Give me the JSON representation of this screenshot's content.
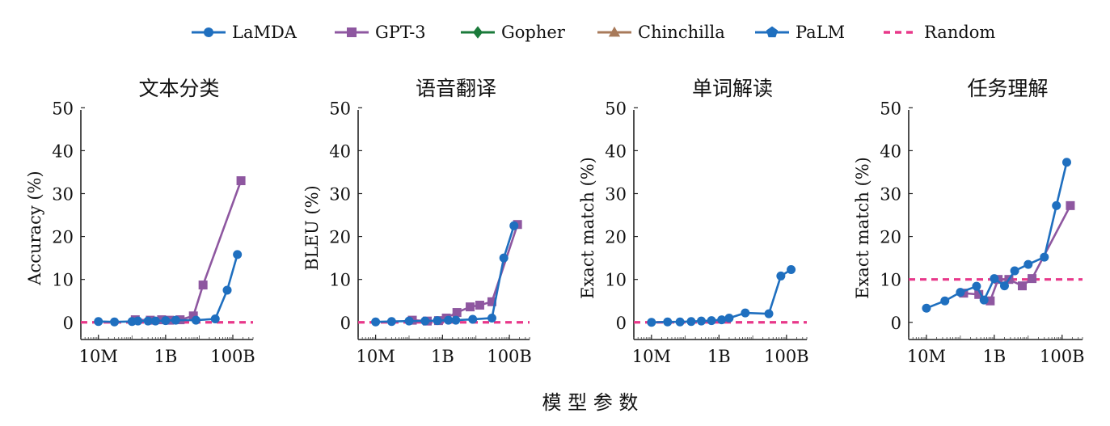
{
  "legend": [
    {
      "name": "LaMDA",
      "color": "#1f6fbf",
      "marker": "circle"
    },
    {
      "name": "GPT-3",
      "color": "#8e57a0",
      "marker": "square"
    },
    {
      "name": "Gopher",
      "color": "#1a7a3a",
      "marker": "diamond"
    },
    {
      "name": "Chinchilla",
      "color": "#a87a5a",
      "marker": "triangle"
    },
    {
      "name": "PaLM",
      "color": "#1f6fbf",
      "marker": "pentagon"
    },
    {
      "name": "Random",
      "color": "#e8388a",
      "marker": "dashed"
    }
  ],
  "footer": {
    "xlabel": "模 型 参 数"
  },
  "chart_data": [
    {
      "type": "line",
      "title": "文本分类",
      "ylabel": "Accuracy (%)",
      "xscale": "log",
      "xlim": [
        3000000,
        400000000000
      ],
      "ylim": [
        -4,
        51
      ],
      "yticks": [
        0,
        10,
        20,
        30,
        40,
        50
      ],
      "xticks": [
        {
          "value": 10000000,
          "label": "10M"
        },
        {
          "value": 1000000000,
          "label": "1B"
        },
        {
          "value": 100000000000,
          "label": "100B"
        }
      ],
      "random": 0,
      "series": [
        {
          "name": "LaMDA",
          "x": [
            10000000,
            30000000,
            100000000,
            150000000,
            300000000,
            500000000,
            1000000000,
            2000000000,
            8000000000,
            30000000000,
            68000000000,
            137000000000
          ],
          "y": [
            0.2,
            0.1,
            0.2,
            0.3,
            0.3,
            0.3,
            0.4,
            0.5,
            0.5,
            0.8,
            7.5,
            15.8
          ]
        },
        {
          "name": "GPT-3",
          "x": [
            125000000,
            350000000,
            760000000,
            1300000000,
            2700000000,
            6700000000,
            13000000000,
            175000000000
          ],
          "y": [
            0.6,
            0.5,
            0.6,
            0.5,
            0.6,
            1.5,
            8.7,
            33.0
          ]
        }
      ]
    },
    {
      "type": "line",
      "title": "语音翻译",
      "ylabel": "BLEU (%)",
      "xscale": "log",
      "xlim": [
        3000000,
        400000000000
      ],
      "ylim": [
        -4,
        51
      ],
      "yticks": [
        0,
        10,
        20,
        30,
        40,
        50
      ],
      "xticks": [
        {
          "value": 10000000,
          "label": "10M"
        },
        {
          "value": 1000000000,
          "label": "1B"
        },
        {
          "value": 100000000000,
          "label": "100B"
        }
      ],
      "random": 0,
      "series": [
        {
          "name": "LaMDA",
          "x": [
            10000000,
            30000000,
            100000000,
            300000000,
            700000000,
            1500000000,
            2500000000,
            8000000000,
            30000000000,
            68000000000,
            137000000000
          ],
          "y": [
            0.1,
            0.2,
            0.3,
            0.3,
            0.4,
            0.5,
            0.5,
            0.7,
            1.0,
            15.0,
            22.5
          ]
        },
        {
          "name": "GPT-3",
          "x": [
            125000000,
            350000000,
            760000000,
            1300000000,
            2700000000,
            6700000000,
            13000000000,
            30000000000,
            175000000000
          ],
          "y": [
            0.5,
            0.3,
            0.4,
            1.0,
            2.3,
            3.6,
            4.0,
            4.8,
            22.8
          ]
        }
      ]
    },
    {
      "type": "line",
      "title": "单词解读",
      "ylabel": "Exact match (%)",
      "xscale": "log",
      "xlim": [
        3000000,
        400000000000
      ],
      "ylim": [
        -4,
        51
      ],
      "yticks": [
        0,
        10,
        20,
        30,
        40,
        50
      ],
      "xticks": [
        {
          "value": 10000000,
          "label": "10M"
        },
        {
          "value": 1000000000,
          "label": "1B"
        },
        {
          "value": 100000000000,
          "label": "100B"
        }
      ],
      "random": 0,
      "series": [
        {
          "name": "LaMDA",
          "x": [
            10000000,
            30000000,
            70000000,
            150000000,
            300000000,
            600000000,
            1200000000,
            2000000000,
            6000000000,
            30000000000,
            68000000000,
            137000000000
          ],
          "y": [
            0.0,
            0.1,
            0.1,
            0.2,
            0.3,
            0.4,
            0.6,
            1.0,
            2.2,
            2.0,
            10.8,
            12.3
          ]
        }
      ]
    },
    {
      "type": "line",
      "title": "任务理解",
      "ylabel": "Exact match (%)",
      "xscale": "log",
      "xlim": [
        3000000,
        400000000000
      ],
      "ylim": [
        -4,
        51
      ],
      "yticks": [
        0,
        10,
        20,
        30,
        40,
        50
      ],
      "xticks": [
        {
          "value": 10000000,
          "label": "10M"
        },
        {
          "value": 1000000000,
          "label": "1B"
        },
        {
          "value": 100000000000,
          "label": "100B"
        }
      ],
      "random": 10,
      "series": [
        {
          "name": "LaMDA",
          "x": [
            10000000,
            35000000,
            100000000,
            300000000,
            500000000,
            1000000000,
            2000000000,
            4000000000,
            10000000000,
            30000000000,
            68000000000,
            137000000000
          ],
          "y": [
            3.3,
            5.0,
            7.0,
            8.4,
            5.2,
            10.2,
            8.5,
            12.0,
            13.5,
            15.2,
            27.2,
            37.3
          ]
        },
        {
          "name": "GPT-3",
          "x": [
            125000000,
            350000000,
            760000000,
            1300000000,
            2700000000,
            6700000000,
            13000000000,
            175000000000
          ],
          "y": [
            6.8,
            6.5,
            5.0,
            10.0,
            10.0,
            8.5,
            10.2,
            27.2
          ]
        }
      ]
    }
  ]
}
